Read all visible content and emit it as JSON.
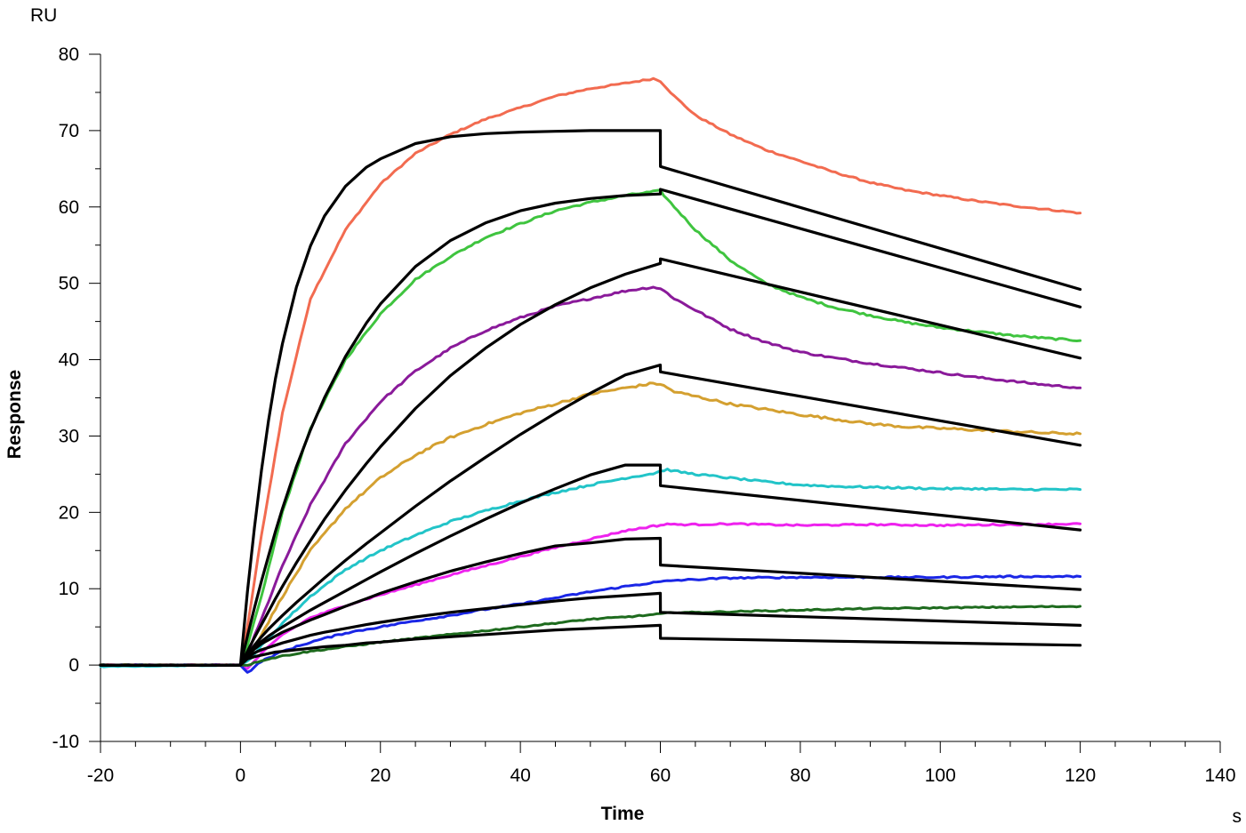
{
  "chart_data": {
    "type": "line",
    "title": "",
    "xlabel": "Time",
    "ylabel": "Response",
    "x_unit": "s",
    "y_unit": "RU",
    "xlim": [
      -20,
      140
    ],
    "ylim": [
      -10,
      80
    ],
    "x_ticks": [
      "-20",
      "0",
      "20",
      "40",
      "60",
      "80",
      "100",
      "120",
      "140"
    ],
    "y_ticks": [
      "-10",
      "0",
      "10",
      "20",
      "30",
      "40",
      "50",
      "60",
      "70",
      "80"
    ],
    "x_minor_step": 5,
    "y_minor_step": 5,
    "grid": false,
    "legend": "none",
    "series": [
      {
        "color": "#F26B50",
        "noise": 0.1,
        "x": [
          -20,
          -10,
          0,
          1,
          3,
          6,
          10,
          15,
          20,
          25,
          30,
          35,
          40,
          45,
          50,
          55,
          59,
          60,
          61,
          62,
          65,
          70,
          75,
          80,
          85,
          90,
          95,
          100,
          105,
          110,
          115,
          120
        ],
        "y": [
          0,
          0,
          0,
          5,
          17,
          33,
          48,
          57,
          63,
          67,
          69.5,
          71.5,
          73,
          74.5,
          75.5,
          76.2,
          76.8,
          76.5,
          75.5,
          74.5,
          72,
          69.5,
          67.5,
          66,
          64.5,
          63.2,
          62.2,
          61.5,
          60.8,
          60.2,
          59.7,
          59.2
        ]
      },
      {
        "color": "#3FC43F",
        "noise": 0.12,
        "x": [
          -20,
          0,
          1,
          3,
          6,
          10,
          15,
          20,
          25,
          30,
          35,
          40,
          45,
          50,
          55,
          59,
          60,
          61,
          62,
          65,
          70,
          75,
          80,
          85,
          90,
          95,
          100,
          105,
          110,
          115,
          120
        ],
        "y": [
          0,
          0,
          2.5,
          9,
          20,
          31,
          40,
          46,
          50.5,
          53.5,
          56,
          57.8,
          59.5,
          60.6,
          61.5,
          62,
          62.1,
          61,
          60,
          57,
          53,
          50,
          48.2,
          46.8,
          45.8,
          44.9,
          44.2,
          43.7,
          43.2,
          42.8,
          42.5
        ]
      },
      {
        "color": "#8A1A9A",
        "noise": 0.12,
        "x": [
          -20,
          0,
          1,
          3,
          6,
          10,
          15,
          20,
          25,
          30,
          35,
          40,
          45,
          50,
          55,
          59,
          60,
          61,
          62,
          65,
          70,
          75,
          80,
          85,
          90,
          95,
          100,
          105,
          110,
          115,
          120
        ],
        "y": [
          0,
          0,
          1.5,
          6,
          13,
          21,
          29,
          34.5,
          38.5,
          41.5,
          43.8,
          45.5,
          47,
          48,
          49,
          49.5,
          49.3,
          48.7,
          48,
          46.5,
          44,
          42.3,
          41,
          40.2,
          39.5,
          38.9,
          38.3,
          37.7,
          37.2,
          36.7,
          36.3
        ]
      },
      {
        "color": "#D4A030",
        "noise": 0.15,
        "x": [
          -20,
          0,
          1,
          3,
          6,
          10,
          15,
          20,
          25,
          30,
          35,
          40,
          45,
          50,
          55,
          59,
          60,
          61,
          62,
          65,
          70,
          75,
          80,
          85,
          90,
          95,
          100,
          105,
          110,
          115,
          120
        ],
        "y": [
          0,
          0,
          1,
          4,
          9,
          15,
          20.5,
          24.5,
          27.5,
          29.8,
          31.5,
          33,
          34.2,
          35.5,
          36.3,
          36.9,
          36.8,
          36.3,
          35.8,
          35.2,
          34.2,
          33.5,
          32.8,
          32.2,
          31.6,
          31.2,
          31,
          30.8,
          30.6,
          30.4,
          30.3
        ]
      },
      {
        "color": "#22C4C8",
        "noise": 0.12,
        "x": [
          -20,
          0,
          1,
          3,
          6,
          10,
          15,
          20,
          25,
          30,
          35,
          40,
          45,
          50,
          55,
          59,
          60,
          61,
          62,
          65,
          70,
          75,
          80,
          85,
          90,
          95,
          100,
          105,
          110,
          115,
          120
        ],
        "y": [
          -0.2,
          0,
          0.5,
          2.5,
          5.5,
          9,
          12.5,
          15,
          17,
          18.8,
          20.2,
          21.5,
          22.6,
          23.6,
          24.5,
          25.1,
          25.4,
          25.6,
          25.4,
          25,
          24.5,
          24,
          23.6,
          23.4,
          23.3,
          23.2,
          23.1,
          23.1,
          23,
          23,
          23
        ]
      },
      {
        "color": "#EE22EE",
        "noise": 0.1,
        "x": [
          -20,
          0,
          1,
          3,
          6,
          10,
          15,
          20,
          25,
          30,
          35,
          40,
          45,
          50,
          55,
          59,
          60,
          61,
          62,
          65,
          70,
          80,
          90,
          100,
          110,
          120
        ],
        "y": [
          0,
          0,
          -0.5,
          1.5,
          4,
          6.2,
          7.8,
          9.2,
          10.5,
          11.8,
          13,
          14.2,
          15.4,
          16.5,
          17.6,
          18.2,
          18.3,
          18.5,
          18.4,
          18.4,
          18.5,
          18.3,
          18.4,
          18.3,
          18.4,
          18.5
        ]
      },
      {
        "color": "#1A26E6",
        "noise": 0.1,
        "x": [
          -20,
          0,
          1,
          3,
          6,
          10,
          15,
          20,
          25,
          30,
          35,
          40,
          45,
          50,
          55,
          59,
          60,
          61,
          62,
          65,
          70,
          80,
          90,
          100,
          110,
          120
        ],
        "y": [
          0,
          0,
          -1,
          0.5,
          1.8,
          3,
          4.2,
          5,
          5.8,
          6.5,
          7.3,
          8,
          8.8,
          9.6,
          10.3,
          10.8,
          10.9,
          11,
          11.1,
          11.2,
          11.4,
          11.5,
          11.5,
          11.5,
          11.6,
          11.6
        ]
      },
      {
        "color": "#1E6B1E",
        "noise": 0.08,
        "x": [
          -20,
          0,
          1,
          3,
          6,
          10,
          15,
          20,
          25,
          30,
          35,
          40,
          45,
          50,
          55,
          59,
          60,
          61,
          62,
          65,
          70,
          80,
          90,
          100,
          110,
          120
        ],
        "y": [
          0,
          0,
          0,
          0.6,
          1.2,
          1.8,
          2.4,
          3,
          3.5,
          4,
          4.5,
          5,
          5.5,
          6,
          6.3,
          6.6,
          6.7,
          6.8,
          6.9,
          6.9,
          7,
          7.2,
          7.4,
          7.5,
          7.6,
          7.7
        ]
      },
      {
        "color": "#000000",
        "noise": 0,
        "x": [
          -20,
          0,
          1,
          2,
          3,
          4,
          5,
          6,
          8,
          10,
          12,
          15,
          18,
          20,
          25,
          30,
          35,
          40,
          45,
          50,
          55,
          60,
          60.01,
          120
        ],
        "y": [
          0,
          0,
          9.6,
          18,
          25.5,
          32,
          37.5,
          42.1,
          49.5,
          54.9,
          58.8,
          62.7,
          65.2,
          66.3,
          68.3,
          69.2,
          69.6,
          69.8,
          69.9,
          70,
          70,
          70,
          65.3,
          49.2
        ]
      },
      {
        "color": "#000000",
        "noise": 0,
        "x": [
          -20,
          0,
          1,
          2,
          3,
          4,
          5,
          6,
          8,
          10,
          12,
          15,
          18,
          20,
          25,
          30,
          35,
          40,
          45,
          50,
          55,
          60,
          60.01,
          120
        ],
        "y": [
          0,
          0,
          3.8,
          7.5,
          11,
          14.3,
          17.5,
          20.5,
          26,
          30.8,
          35,
          40.4,
          44.8,
          47.3,
          52.2,
          55.6,
          57.9,
          59.5,
          60.5,
          61.1,
          61.5,
          61.7,
          62.3,
          46.9
        ]
      },
      {
        "color": "#000000",
        "noise": 0,
        "x": [
          -20,
          0,
          1,
          2,
          3,
          4,
          5,
          6,
          8,
          10,
          12,
          15,
          18,
          20,
          25,
          30,
          35,
          40,
          45,
          50,
          55,
          60,
          60.01,
          120
        ],
        "y": [
          0,
          0,
          1.8,
          3.6,
          5.3,
          7,
          8.7,
          10.3,
          13.4,
          16.3,
          19.1,
          22.9,
          26.4,
          28.6,
          33.6,
          37.9,
          41.5,
          44.6,
          47.2,
          49.4,
          51.2,
          52.6,
          53.2,
          40.2
        ]
      },
      {
        "color": "#000000",
        "noise": 0,
        "x": [
          -20,
          0,
          1,
          2,
          3,
          4,
          5,
          6,
          8,
          10,
          12,
          15,
          18,
          20,
          25,
          30,
          35,
          40,
          45,
          50,
          55,
          60,
          60.01,
          120
        ],
        "y": [
          0,
          0,
          1.4,
          2.6,
          3.7,
          4.7,
          5.6,
          6.5,
          8.2,
          9.8,
          11.4,
          13.7,
          15.9,
          17.3,
          20.8,
          24.1,
          27.2,
          30.2,
          33,
          35.6,
          38,
          39.3,
          38.4,
          28.8
        ]
      },
      {
        "color": "#000000",
        "noise": 0,
        "x": [
          -20,
          0,
          1,
          2,
          3,
          4,
          5,
          6,
          8,
          10,
          12,
          15,
          18,
          20,
          25,
          30,
          35,
          40,
          45,
          50,
          55,
          60,
          60.01,
          120
        ],
        "y": [
          0,
          0,
          1.3,
          2.3,
          3.1,
          3.8,
          4.4,
          5,
          6.1,
          7.2,
          8.2,
          9.7,
          11.2,
          12.2,
          14.6,
          16.9,
          19.1,
          21.2,
          23.1,
          24.9,
          26.2,
          26.2,
          23.5,
          17.7
        ]
      },
      {
        "color": "#000000",
        "noise": 0,
        "x": [
          -20,
          0,
          1,
          2,
          3,
          4,
          5,
          6,
          8,
          10,
          12,
          15,
          18,
          20,
          25,
          30,
          35,
          40,
          45,
          50,
          55,
          60,
          60.01,
          120
        ],
        "y": [
          0,
          0,
          1.3,
          2.1,
          2.8,
          3.3,
          3.8,
          4.3,
          5.1,
          5.9,
          6.6,
          7.7,
          8.7,
          9.4,
          10.9,
          12.3,
          13.5,
          14.6,
          15.6,
          16,
          16.5,
          16.6,
          13.1,
          9.9
        ]
      },
      {
        "color": "#000000",
        "noise": 0,
        "x": [
          -20,
          0,
          1,
          2,
          3,
          4,
          5,
          6,
          8,
          10,
          12,
          15,
          18,
          20,
          25,
          30,
          35,
          40,
          45,
          50,
          55,
          60,
          60.01,
          120
        ],
        "y": [
          0,
          0,
          1,
          1.6,
          2,
          2.3,
          2.6,
          2.9,
          3.4,
          3.9,
          4.3,
          4.8,
          5.3,
          5.6,
          6.3,
          6.9,
          7.4,
          7.9,
          8.4,
          8.8,
          9.1,
          9.4,
          6.9,
          5.2
        ]
      },
      {
        "color": "#000000",
        "noise": 0,
        "x": [
          -20,
          0,
          1,
          2,
          3,
          4,
          5,
          6,
          8,
          10,
          12,
          15,
          18,
          20,
          25,
          30,
          35,
          40,
          45,
          50,
          55,
          60,
          60.01,
          120
        ],
        "y": [
          0,
          0,
          0.8,
          1.1,
          1.3,
          1.5,
          1.7,
          1.8,
          2,
          2.2,
          2.4,
          2.6,
          2.9,
          3,
          3.4,
          3.7,
          4,
          4.3,
          4.6,
          4.8,
          5,
          5.2,
          3.5,
          2.6
        ]
      }
    ]
  }
}
